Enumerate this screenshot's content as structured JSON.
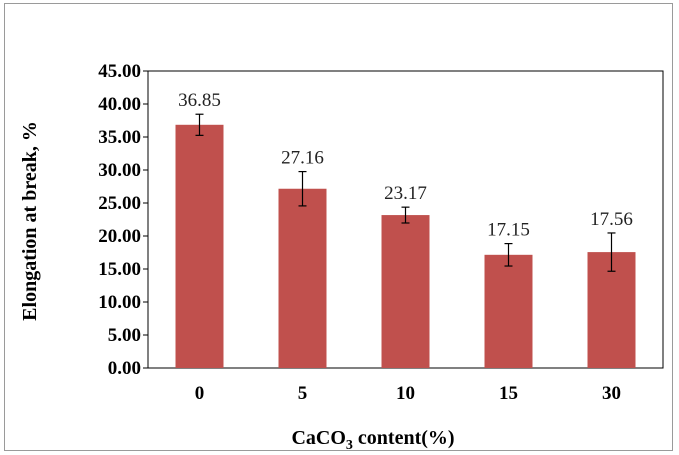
{
  "chart_data": {
    "type": "bar",
    "title": "",
    "xlabel": "CaCO3 content(%)",
    "xlabel_parts": {
      "before": "CaCO",
      "sub": "3",
      "after": " content(%)"
    },
    "ylabel": "Elongation at break, %",
    "ylim": [
      0,
      45
    ],
    "yticks": [
      "0.00",
      "5.00",
      "10.00",
      "15.00",
      "20.00",
      "25.00",
      "30.00",
      "35.00",
      "40.00",
      "45.00"
    ],
    "categories": [
      "0",
      "5",
      "10",
      "15",
      "30"
    ],
    "values": [
      36.85,
      27.16,
      23.17,
      17.15,
      17.56
    ],
    "value_labels": [
      "36.85",
      "27.16",
      "23.17",
      "17.15",
      "17.56"
    ],
    "errors": [
      1.6,
      2.6,
      1.2,
      1.7,
      2.9
    ],
    "bar_color": "#c0504d",
    "grid": false,
    "legend": "none"
  }
}
